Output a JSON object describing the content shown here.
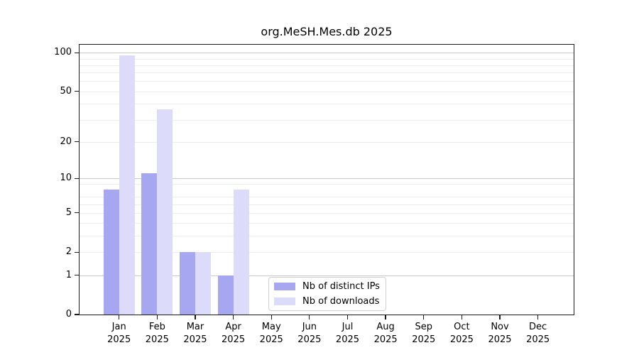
{
  "chart_data": {
    "type": "bar",
    "title": "org.MeSH.Mes.db 2025",
    "categories": [
      "Jan",
      "Feb",
      "Mar",
      "Apr",
      "May",
      "Jun",
      "Jul",
      "Aug",
      "Sep",
      "Oct",
      "Nov",
      "Dec"
    ],
    "x_year": "2025",
    "series": [
      {
        "name": "Nb of distinct IPs",
        "color": "#a6a6f1",
        "values": [
          8,
          11,
          2,
          1,
          0,
          0,
          0,
          0,
          0,
          0,
          0,
          0
        ]
      },
      {
        "name": "Nb of downloads",
        "color": "#dcdcfa",
        "values": [
          95,
          36,
          2,
          8,
          0,
          0,
          0,
          0,
          0,
          0,
          0,
          0
        ]
      }
    ],
    "y_axis": {
      "scale": "log1p",
      "ticks": [
        0,
        1,
        2,
        5,
        10,
        20,
        50,
        100
      ],
      "major_gridlines": [
        1,
        10,
        100
      ],
      "minor_gridlines": [
        2,
        3,
        4,
        5,
        6,
        7,
        9,
        20,
        30,
        40,
        50,
        60,
        70,
        80,
        90
      ],
      "range_top": 115
    },
    "grid": true,
    "legend_position": "inside-bottom-center",
    "colors": {
      "major_grid": "#c9c9c9",
      "minor_grid": "#ededed",
      "spine": "#1a1a1a"
    }
  }
}
